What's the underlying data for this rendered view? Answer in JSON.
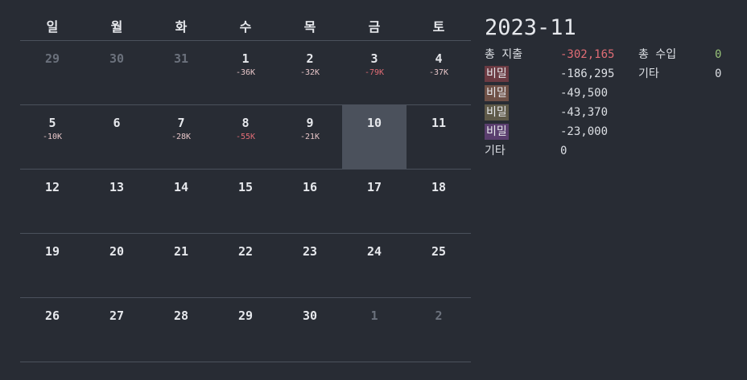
{
  "calendar": {
    "weekdays": [
      "일",
      "월",
      "화",
      "수",
      "목",
      "금",
      "토"
    ],
    "weeks": [
      [
        {
          "d": "29",
          "a": ""
        },
        {
          "d": "30",
          "a": ""
        },
        {
          "d": "31",
          "a": ""
        },
        {
          "d": "1",
          "a": "-36K"
        },
        {
          "d": "2",
          "a": "-32K"
        },
        {
          "d": "3",
          "a": "-79K"
        },
        {
          "d": "4",
          "a": "-37K"
        }
      ],
      [
        {
          "d": "5",
          "a": "-10K"
        },
        {
          "d": "6",
          "a": ""
        },
        {
          "d": "7",
          "a": "-28K"
        },
        {
          "d": "8",
          "a": "-55K"
        },
        {
          "d": "9",
          "a": "-21K"
        },
        {
          "d": "10",
          "a": ""
        },
        {
          "d": "11",
          "a": ""
        }
      ],
      [
        {
          "d": "12",
          "a": ""
        },
        {
          "d": "13",
          "a": ""
        },
        {
          "d": "14",
          "a": ""
        },
        {
          "d": "15",
          "a": ""
        },
        {
          "d": "16",
          "a": ""
        },
        {
          "d": "17",
          "a": ""
        },
        {
          "d": "18",
          "a": ""
        }
      ],
      [
        {
          "d": "19",
          "a": ""
        },
        {
          "d": "20",
          "a": ""
        },
        {
          "d": "21",
          "a": ""
        },
        {
          "d": "22",
          "a": ""
        },
        {
          "d": "23",
          "a": ""
        },
        {
          "d": "24",
          "a": ""
        },
        {
          "d": "25",
          "a": ""
        }
      ],
      [
        {
          "d": "26",
          "a": ""
        },
        {
          "d": "27",
          "a": ""
        },
        {
          "d": "28",
          "a": ""
        },
        {
          "d": "29",
          "a": ""
        },
        {
          "d": "30",
          "a": ""
        },
        {
          "d": "1",
          "a": ""
        },
        {
          "d": "2",
          "a": ""
        }
      ]
    ],
    "other_month_days": [
      "0-0",
      "0-1",
      "0-2",
      "4-5",
      "4-6"
    ],
    "today": "1-5",
    "amount_colors": {
      "normal": "#e6c5c8",
      "high": "#e06c75"
    },
    "high_amount_days": [
      "0-5",
      "1-3"
    ]
  },
  "summary": {
    "title": "2023-11",
    "total_expense_label": "총 지출",
    "total_expense_value": "-302,165",
    "total_income_label": "총 수입",
    "total_income_value": "0",
    "other_income_label": "기타",
    "other_income_value": "0",
    "categories": [
      {
        "label": "비밀",
        "value": "-186,295",
        "color": "#6b3a42"
      },
      {
        "label": "비밀",
        "value": "-49,500",
        "color": "#6e5046"
      },
      {
        "label": "비밀",
        "value": "-43,370",
        "color": "#5e5948"
      },
      {
        "label": "비밀",
        "value": "-23,000",
        "color": "#5a3e6e"
      }
    ],
    "other_expense_label": "기타",
    "other_expense_value": "0",
    "colors": {
      "expense": "#e06c75",
      "income": "#98c379"
    }
  }
}
